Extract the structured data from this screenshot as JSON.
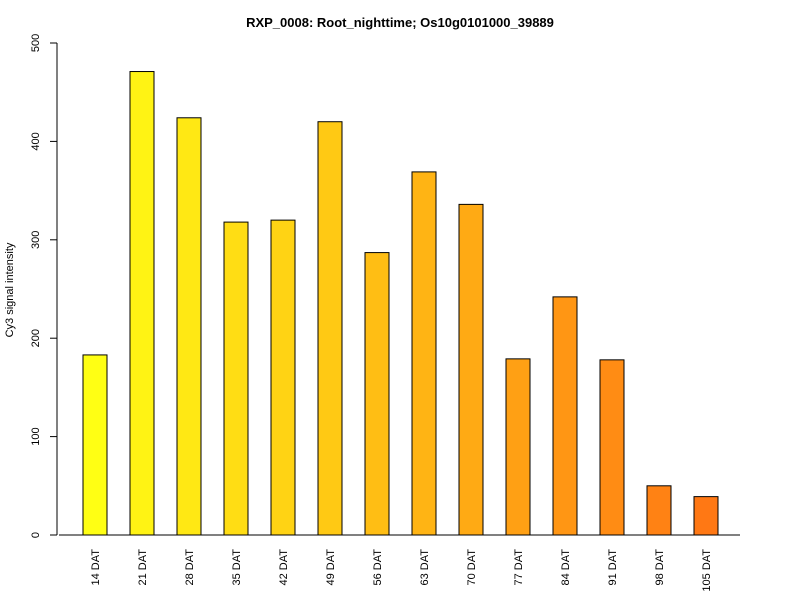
{
  "chart_data": {
    "type": "bar",
    "title": "RXP_0008: Root_nighttime; Os10g0101000_39889",
    "xlabel": "",
    "ylabel": "Cy3  signal intensity",
    "ylim": [
      0,
      500
    ],
    "yticks": [
      0,
      100,
      200,
      300,
      400,
      500
    ],
    "grid": false,
    "legend": "none",
    "categories": [
      "14 DAT",
      "21 DAT",
      "28 DAT",
      "35 DAT",
      "42 DAT",
      "49 DAT",
      "56 DAT",
      "63 DAT",
      "70 DAT",
      "77 DAT",
      "84 DAT",
      "91 DAT",
      "98 DAT",
      "105 DAT"
    ],
    "values": [
      183,
      471,
      424,
      318,
      320,
      420,
      287,
      369,
      336,
      179,
      242,
      178,
      50,
      39
    ],
    "colors": [
      "#ffff14",
      "#fff314",
      "#ffe814",
      "#ffdd14",
      "#ffd314",
      "#ffc914",
      "#ffbe14",
      "#ffb414",
      "#ffaa14",
      "#ffa014",
      "#ff9614",
      "#ff8c14",
      "#ff8214",
      "#ff7814"
    ],
    "bar_stroke": "#000000"
  }
}
